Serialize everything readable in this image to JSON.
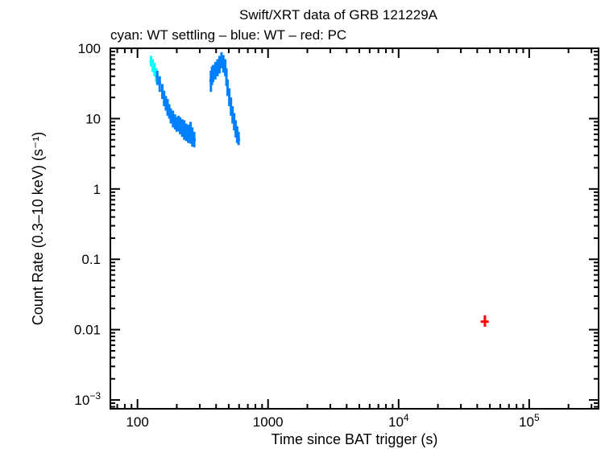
{
  "chart_data": {
    "type": "scatter",
    "title": "Swift/XRT data of GRB 121229A",
    "subtitle": "cyan: WT settling – blue: WT – red: PC",
    "xlabel": "Time since BAT trigger (s)",
    "ylabel": "Count Rate (0.3–10 keV) (s⁻¹)",
    "xscale": "log",
    "yscale": "log",
    "xlim": [
      62,
      340000
    ],
    "ylim": [
      0.00075,
      100
    ],
    "grid": false,
    "x_ticks": [
      {
        "value": 100,
        "label": "100"
      },
      {
        "value": 1000,
        "label": "1000"
      },
      {
        "value": 10000,
        "label": "10",
        "exp": "4"
      },
      {
        "value": 100000,
        "label": "10",
        "exp": "5"
      }
    ],
    "y_ticks": [
      {
        "value": 100,
        "label": "100"
      },
      {
        "value": 10,
        "label": "10"
      },
      {
        "value": 1,
        "label": "1"
      },
      {
        "value": 0.1,
        "label": "0.1"
      },
      {
        "value": 0.01,
        "label": "0.01"
      },
      {
        "value": 0.001,
        "label": "10",
        "exp": "−3"
      }
    ],
    "series": [
      {
        "name": "WT settling",
        "color": "#00ffff",
        "points": [
          [
            127,
            66,
            55,
            78
          ],
          [
            131,
            58,
            46,
            70
          ],
          [
            135,
            50,
            40,
            62
          ],
          [
            139,
            42,
            33,
            52
          ]
        ]
      },
      {
        "name": "WT",
        "color": "#0080ff",
        "points": [
          [
            142,
            40,
            30,
            48
          ],
          [
            148,
            32,
            24,
            40
          ],
          [
            155,
            25,
            19,
            31
          ],
          [
            160,
            20,
            15,
            25
          ],
          [
            165,
            17,
            13,
            21
          ],
          [
            170,
            15,
            11,
            19
          ],
          [
            175,
            13,
            10,
            16
          ],
          [
            180,
            11,
            8.5,
            14
          ],
          [
            187,
            10,
            7.5,
            13
          ],
          [
            194,
            9,
            7,
            11.5
          ],
          [
            200,
            8.3,
            6.5,
            10.5
          ],
          [
            206,
            8.7,
            6.6,
            11
          ],
          [
            212,
            8,
            6,
            10.5
          ],
          [
            220,
            7.5,
            5.5,
            9.8
          ],
          [
            228,
            7,
            5,
            9.5
          ],
          [
            236,
            6.5,
            4.8,
            8.5
          ],
          [
            245,
            6.2,
            4.5,
            8.2
          ],
          [
            255,
            6,
            4.4,
            9
          ],
          [
            263,
            5.5,
            4,
            7.5
          ],
          [
            272,
            5,
            3.9,
            6.5
          ],
          [
            365,
            35,
            24,
            48
          ],
          [
            372,
            42,
            30,
            55
          ],
          [
            380,
            45,
            33,
            58
          ],
          [
            395,
            50,
            36,
            64
          ],
          [
            410,
            55,
            40,
            70
          ],
          [
            425,
            60,
            44,
            78
          ],
          [
            440,
            72,
            52,
            88
          ],
          [
            455,
            63,
            45,
            80
          ],
          [
            470,
            55,
            40,
            70
          ],
          [
            480,
            40,
            29,
            52
          ],
          [
            490,
            28,
            21,
            36
          ],
          [
            505,
            21,
            15,
            27
          ],
          [
            520,
            15,
            11,
            20
          ],
          [
            535,
            12,
            8.5,
            15
          ],
          [
            550,
            9,
            6.8,
            12
          ],
          [
            565,
            7.2,
            5.4,
            9.5
          ],
          [
            580,
            6,
            4.5,
            7.8
          ],
          [
            595,
            5,
            4.2,
            6.5
          ]
        ]
      },
      {
        "name": "PC",
        "color": "#ff0000",
        "points": [
          [
            45800,
            0.013,
            0.011,
            0.016
          ]
        ],
        "xerr": [
          [
            42500,
            49000
          ]
        ]
      }
    ]
  }
}
